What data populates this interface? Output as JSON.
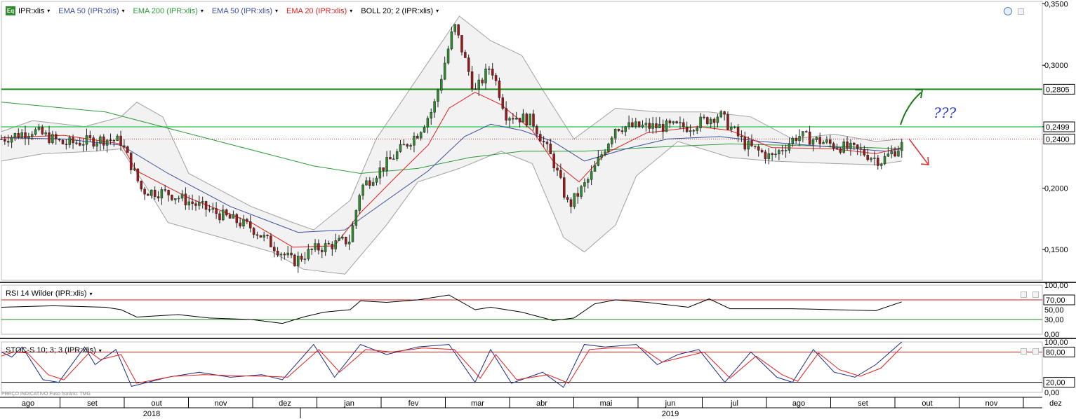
{
  "toolbar": {
    "symbol_icon": "Eq",
    "symbol": "IPR:xlis",
    "indicators": [
      {
        "label": "EMA 50 (IPR:xlis)",
        "color": "#3b4fa0"
      },
      {
        "label": "EMA 200 (IPR:xlis)",
        "color": "#2e9a3a"
      },
      {
        "label": "EMA 50 (IPR:xlis)",
        "color": "#3b4fa0"
      },
      {
        "label": "EMA 20 (IPR:xlis)",
        "color": "#e02020"
      },
      {
        "label": "BOLL 20; 2 (IPR:xlis)",
        "color": "#000000"
      }
    ],
    "caret": "▾"
  },
  "rsi_panel": {
    "label": "RSI 14 Wilder (IPR:xlis)"
  },
  "stoch_panel": {
    "label": "STOC-S 10; 3; 3 (IPR:xlis)"
  },
  "footnote": "PREÇO INDICATIVO    Fuso horário: TMG",
  "colors": {
    "up": "#2e8b2e",
    "down": "#a01818",
    "ema50": "#3b4fa0",
    "ema200": "#2e9a3a",
    "ema20": "#e02020",
    "boll": "#a0a0a0",
    "boll_fill": "#f2f2f2",
    "hline_dark": "#1a8a1a",
    "hline_light": "#44cc66"
  },
  "chart_data": {
    "type": "candlestick",
    "price_axis": {
      "ticks": [
        "0,3500",
        "0,3000",
        "0,2500",
        "0,2000",
        "0,1500"
      ],
      "tick_values": [
        0.35,
        0.3,
        0.25,
        0.2,
        0.15
      ],
      "ylim": [
        0.125,
        0.352
      ]
    },
    "price_labels": [
      {
        "label": "0,2805",
        "value": 0.2805
      },
      {
        "label": "0,2499",
        "value": 0.2499
      },
      {
        "label": "0,2400",
        "value": 0.24
      }
    ],
    "horizontal_lines": [
      {
        "value": 0.2805,
        "style": "dark-green"
      },
      {
        "value": 0.2499,
        "style": "light-green"
      },
      {
        "value": 0.24,
        "style": "dotted-red"
      }
    ],
    "months": [
      "ago",
      "set",
      "out",
      "nov",
      "dez",
      "jan",
      "fev",
      "mar",
      "abr",
      "mai",
      "jun",
      "jul",
      "ago",
      "set",
      "out",
      "nov",
      "dez"
    ],
    "years": [
      "2018",
      "2019"
    ],
    "close_path": [
      [
        0,
        0.24
      ],
      [
        0.03,
        0.247
      ],
      [
        0.06,
        0.236
      ],
      [
        0.1,
        0.24
      ],
      [
        0.115,
        0.238
      ],
      [
        0.135,
        0.198
      ],
      [
        0.16,
        0.196
      ],
      [
        0.2,
        0.182
      ],
      [
        0.24,
        0.168
      ],
      [
        0.28,
        0.14
      ],
      [
        0.3,
        0.15
      ],
      [
        0.335,
        0.158
      ],
      [
        0.345,
        0.2
      ],
      [
        0.37,
        0.22
      ],
      [
        0.4,
        0.245
      ],
      [
        0.415,
        0.265
      ],
      [
        0.435,
        0.333
      ],
      [
        0.455,
        0.278
      ],
      [
        0.47,
        0.3
      ],
      [
        0.485,
        0.26
      ],
      [
        0.51,
        0.255
      ],
      [
        0.53,
        0.222
      ],
      [
        0.545,
        0.185
      ],
      [
        0.565,
        0.208
      ],
      [
        0.59,
        0.25
      ],
      [
        0.62,
        0.25
      ],
      [
        0.66,
        0.25
      ],
      [
        0.69,
        0.26
      ],
      [
        0.715,
        0.235
      ],
      [
        0.74,
        0.225
      ],
      [
        0.765,
        0.243
      ],
      [
        0.8,
        0.235
      ],
      [
        0.825,
        0.23
      ],
      [
        0.845,
        0.222
      ],
      [
        0.865,
        0.235
      ]
    ],
    "ema50_path": [
      [
        0,
        0.241
      ],
      [
        0.06,
        0.24
      ],
      [
        0.115,
        0.235
      ],
      [
        0.16,
        0.212
      ],
      [
        0.22,
        0.185
      ],
      [
        0.285,
        0.164
      ],
      [
        0.33,
        0.166
      ],
      [
        0.37,
        0.19
      ],
      [
        0.41,
        0.214
      ],
      [
        0.445,
        0.242
      ],
      [
        0.47,
        0.252
      ],
      [
        0.5,
        0.247
      ],
      [
        0.53,
        0.238
      ],
      [
        0.56,
        0.222
      ],
      [
        0.6,
        0.232
      ],
      [
        0.64,
        0.24
      ],
      [
        0.69,
        0.242
      ],
      [
        0.73,
        0.238
      ],
      [
        0.79,
        0.234
      ],
      [
        0.85,
        0.23
      ],
      [
        0.865,
        0.232
      ]
    ],
    "ema200_path": [
      [
        0,
        0.27
      ],
      [
        0.1,
        0.262
      ],
      [
        0.2,
        0.24
      ],
      [
        0.3,
        0.218
      ],
      [
        0.345,
        0.212
      ],
      [
        0.4,
        0.216
      ],
      [
        0.45,
        0.225
      ],
      [
        0.5,
        0.23
      ],
      [
        0.56,
        0.23
      ],
      [
        0.62,
        0.233
      ],
      [
        0.7,
        0.236
      ],
      [
        0.8,
        0.234
      ],
      [
        0.865,
        0.232
      ]
    ],
    "ema20_path": [
      [
        0,
        0.241
      ],
      [
        0.06,
        0.243
      ],
      [
        0.115,
        0.236
      ],
      [
        0.13,
        0.214
      ],
      [
        0.18,
        0.192
      ],
      [
        0.24,
        0.172
      ],
      [
        0.28,
        0.152
      ],
      [
        0.32,
        0.153
      ],
      [
        0.345,
        0.18
      ],
      [
        0.38,
        0.21
      ],
      [
        0.41,
        0.235
      ],
      [
        0.43,
        0.265
      ],
      [
        0.455,
        0.278
      ],
      [
        0.48,
        0.268
      ],
      [
        0.51,
        0.247
      ],
      [
        0.53,
        0.222
      ],
      [
        0.555,
        0.205
      ],
      [
        0.58,
        0.228
      ],
      [
        0.62,
        0.245
      ],
      [
        0.67,
        0.25
      ],
      [
        0.7,
        0.247
      ],
      [
        0.74,
        0.233
      ],
      [
        0.8,
        0.232
      ],
      [
        0.84,
        0.228
      ],
      [
        0.865,
        0.233
      ]
    ],
    "boll_upper_path": [
      [
        0,
        0.246
      ],
      [
        0.03,
        0.255
      ],
      [
        0.08,
        0.25
      ],
      [
        0.115,
        0.258
      ],
      [
        0.13,
        0.27
      ],
      [
        0.155,
        0.258
      ],
      [
        0.18,
        0.212
      ],
      [
        0.24,
        0.185
      ],
      [
        0.28,
        0.172
      ],
      [
        0.3,
        0.166
      ],
      [
        0.335,
        0.19
      ],
      [
        0.36,
        0.24
      ],
      [
        0.4,
        0.29
      ],
      [
        0.44,
        0.34
      ],
      [
        0.47,
        0.32
      ],
      [
        0.5,
        0.308
      ],
      [
        0.52,
        0.28
      ],
      [
        0.55,
        0.24
      ],
      [
        0.59,
        0.265
      ],
      [
        0.63,
        0.262
      ],
      [
        0.68,
        0.262
      ],
      [
        0.72,
        0.258
      ],
      [
        0.76,
        0.24
      ],
      [
        0.8,
        0.244
      ],
      [
        0.84,
        0.238
      ],
      [
        0.865,
        0.24
      ]
    ],
    "boll_lower_path": [
      [
        0,
        0.222
      ],
      [
        0.04,
        0.228
      ],
      [
        0.09,
        0.23
      ],
      [
        0.115,
        0.232
      ],
      [
        0.14,
        0.2
      ],
      [
        0.16,
        0.172
      ],
      [
        0.21,
        0.16
      ],
      [
        0.26,
        0.148
      ],
      [
        0.29,
        0.134
      ],
      [
        0.33,
        0.13
      ],
      [
        0.35,
        0.15
      ],
      [
        0.37,
        0.17
      ],
      [
        0.4,
        0.205
      ],
      [
        0.44,
        0.216
      ],
      [
        0.48,
        0.23
      ],
      [
        0.51,
        0.22
      ],
      [
        0.54,
        0.16
      ],
      [
        0.56,
        0.148
      ],
      [
        0.59,
        0.17
      ],
      [
        0.61,
        0.21
      ],
      [
        0.65,
        0.238
      ],
      [
        0.7,
        0.225
      ],
      [
        0.74,
        0.222
      ],
      [
        0.8,
        0.22
      ],
      [
        0.84,
        0.219
      ],
      [
        0.865,
        0.222
      ]
    ],
    "rsi": {
      "ticks": [
        "100,00",
        "70,00",
        "50,00",
        "30,00",
        "0,00"
      ],
      "tick_values": [
        100,
        70,
        50,
        30,
        0
      ],
      "levels": [
        70,
        30
      ],
      "current_label": "70,00",
      "path": [
        [
          0,
          55
        ],
        [
          0.05,
          58
        ],
        [
          0.1,
          55
        ],
        [
          0.115,
          50
        ],
        [
          0.13,
          35
        ],
        [
          0.17,
          40
        ],
        [
          0.2,
          33
        ],
        [
          0.24,
          30
        ],
        [
          0.27,
          22
        ],
        [
          0.29,
          35
        ],
        [
          0.31,
          45
        ],
        [
          0.335,
          50
        ],
        [
          0.345,
          68
        ],
        [
          0.37,
          65
        ],
        [
          0.4,
          70
        ],
        [
          0.43,
          80
        ],
        [
          0.455,
          50
        ],
        [
          0.47,
          55
        ],
        [
          0.5,
          45
        ],
        [
          0.53,
          28
        ],
        [
          0.55,
          33
        ],
        [
          0.57,
          62
        ],
        [
          0.59,
          70
        ],
        [
          0.62,
          65
        ],
        [
          0.66,
          55
        ],
        [
          0.68,
          72
        ],
        [
          0.7,
          52
        ],
        [
          0.73,
          52
        ],
        [
          0.76,
          52
        ],
        [
          0.8,
          50
        ],
        [
          0.84,
          48
        ],
        [
          0.865,
          66
        ]
      ]
    },
    "stochastic": {
      "ticks": [
        "100,00",
        "80,00",
        "20,00",
        "0,00"
      ],
      "tick_values": [
        100,
        80,
        20,
        0
      ],
      "levels": [
        80,
        20
      ],
      "current_label": "80,00",
      "k_path": [
        [
          0,
          80
        ],
        [
          0.01,
          70
        ],
        [
          0.02,
          90
        ],
        [
          0.04,
          25
        ],
        [
          0.055,
          20
        ],
        [
          0.08,
          90
        ],
        [
          0.09,
          55
        ],
        [
          0.11,
          85
        ],
        [
          0.125,
          12
        ],
        [
          0.16,
          30
        ],
        [
          0.19,
          40
        ],
        [
          0.22,
          30
        ],
        [
          0.25,
          35
        ],
        [
          0.27,
          25
        ],
        [
          0.3,
          95
        ],
        [
          0.32,
          30
        ],
        [
          0.345,
          95
        ],
        [
          0.37,
          75
        ],
        [
          0.4,
          90
        ],
        [
          0.43,
          95
        ],
        [
          0.455,
          20
        ],
        [
          0.47,
          85
        ],
        [
          0.49,
          18
        ],
        [
          0.52,
          40
        ],
        [
          0.54,
          10
        ],
        [
          0.56,
          95
        ],
        [
          0.58,
          90
        ],
        [
          0.61,
          95
        ],
        [
          0.63,
          55
        ],
        [
          0.65,
          75
        ],
        [
          0.67,
          85
        ],
        [
          0.695,
          20
        ],
        [
          0.72,
          80
        ],
        [
          0.745,
          30
        ],
        [
          0.76,
          20
        ],
        [
          0.78,
          85
        ],
        [
          0.8,
          40
        ],
        [
          0.82,
          30
        ],
        [
          0.84,
          55
        ],
        [
          0.865,
          100
        ]
      ],
      "d_path": [
        [
          0,
          72
        ],
        [
          0.012,
          80
        ],
        [
          0.025,
          78
        ],
        [
          0.045,
          35
        ],
        [
          0.06,
          25
        ],
        [
          0.085,
          80
        ],
        [
          0.095,
          65
        ],
        [
          0.115,
          75
        ],
        [
          0.13,
          18
        ],
        [
          0.165,
          32
        ],
        [
          0.195,
          35
        ],
        [
          0.225,
          33
        ],
        [
          0.255,
          32
        ],
        [
          0.275,
          30
        ],
        [
          0.305,
          85
        ],
        [
          0.325,
          40
        ],
        [
          0.35,
          85
        ],
        [
          0.375,
          80
        ],
        [
          0.405,
          88
        ],
        [
          0.435,
          85
        ],
        [
          0.46,
          28
        ],
        [
          0.475,
          75
        ],
        [
          0.495,
          25
        ],
        [
          0.525,
          35
        ],
        [
          0.545,
          18
        ],
        [
          0.565,
          85
        ],
        [
          0.585,
          88
        ],
        [
          0.615,
          88
        ],
        [
          0.635,
          60
        ],
        [
          0.655,
          70
        ],
        [
          0.675,
          80
        ],
        [
          0.7,
          28
        ],
        [
          0.725,
          72
        ],
        [
          0.75,
          35
        ],
        [
          0.765,
          22
        ],
        [
          0.785,
          78
        ],
        [
          0.805,
          45
        ],
        [
          0.825,
          32
        ],
        [
          0.845,
          48
        ],
        [
          0.865,
          90
        ]
      ]
    },
    "annotations": [
      {
        "type": "arrow",
        "color": "green",
        "direction": "up"
      },
      {
        "type": "text",
        "text": "???",
        "color": "blue"
      },
      {
        "type": "arrow",
        "color": "red",
        "direction": "down"
      }
    ]
  }
}
